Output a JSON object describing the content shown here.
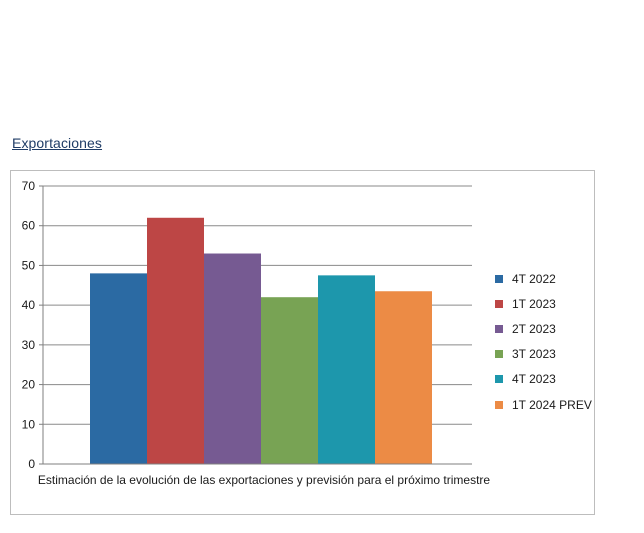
{
  "section_title": "Exportaciones",
  "chart_data": {
    "type": "bar",
    "title": "",
    "xlabel": "Estimación de la evolución de las exportaciones y previsión para el próximo trimestre",
    "ylabel": "",
    "ylim": [
      0,
      70
    ],
    "yticks": [
      0,
      10,
      20,
      30,
      40,
      50,
      60,
      70
    ],
    "grid": true,
    "legend_position": "right",
    "series": [
      {
        "name": "4T 2022",
        "value": 48,
        "color": "#2b6aa3"
      },
      {
        "name": "1T 2023",
        "value": 62,
        "color": "#bd4645"
      },
      {
        "name": "2T 2023",
        "value": 53,
        "color": "#765a92"
      },
      {
        "name": "3T 2023",
        "value": 42,
        "color": "#78a354"
      },
      {
        "name": "4T 2023",
        "value": 47.5,
        "color": "#1d97ac"
      },
      {
        "name": "1T 2024 PREV",
        "value": 43.5,
        "color": "#ec8b45"
      }
    ]
  }
}
